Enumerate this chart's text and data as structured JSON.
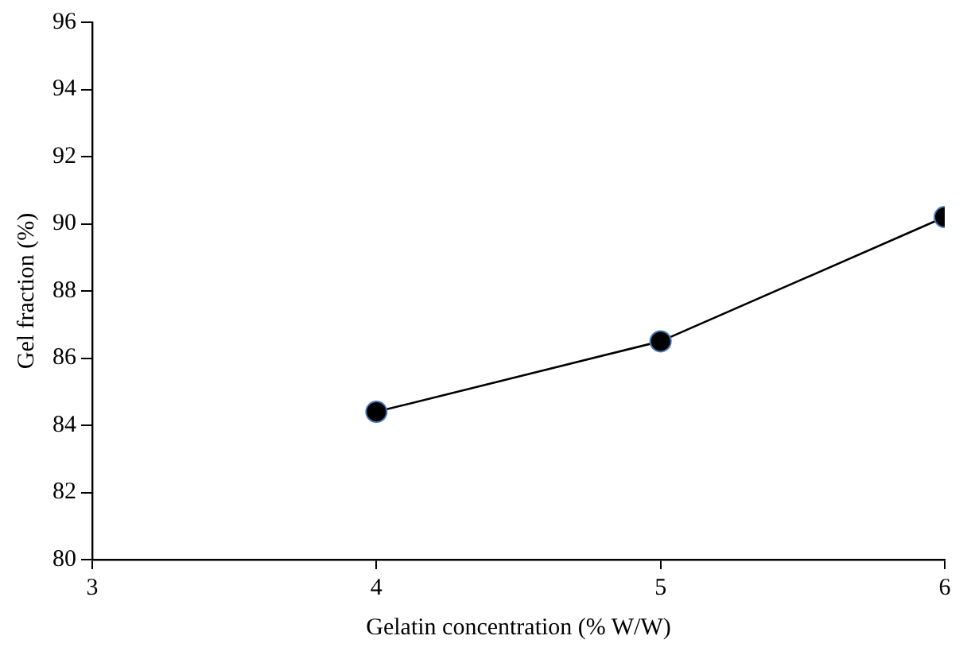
{
  "chart_data": {
    "type": "line",
    "xlabel": "Gelatin concentration (% W/W)",
    "ylabel": "Gel fraction (%)",
    "x": [
      4,
      5,
      6
    ],
    "series": [
      {
        "color": "#000000",
        "values": [
          84.4,
          86.5,
          90.2
        ]
      }
    ],
    "xlim": [
      3,
      6
    ],
    "xticks": [
      3,
      4,
      5,
      6
    ],
    "ylim": [
      80,
      96
    ],
    "yticks": [
      80,
      82,
      84,
      86,
      88,
      90,
      92,
      94,
      96
    ],
    "grid": false,
    "legend": false,
    "marker": "circle",
    "line_style": "solid"
  }
}
